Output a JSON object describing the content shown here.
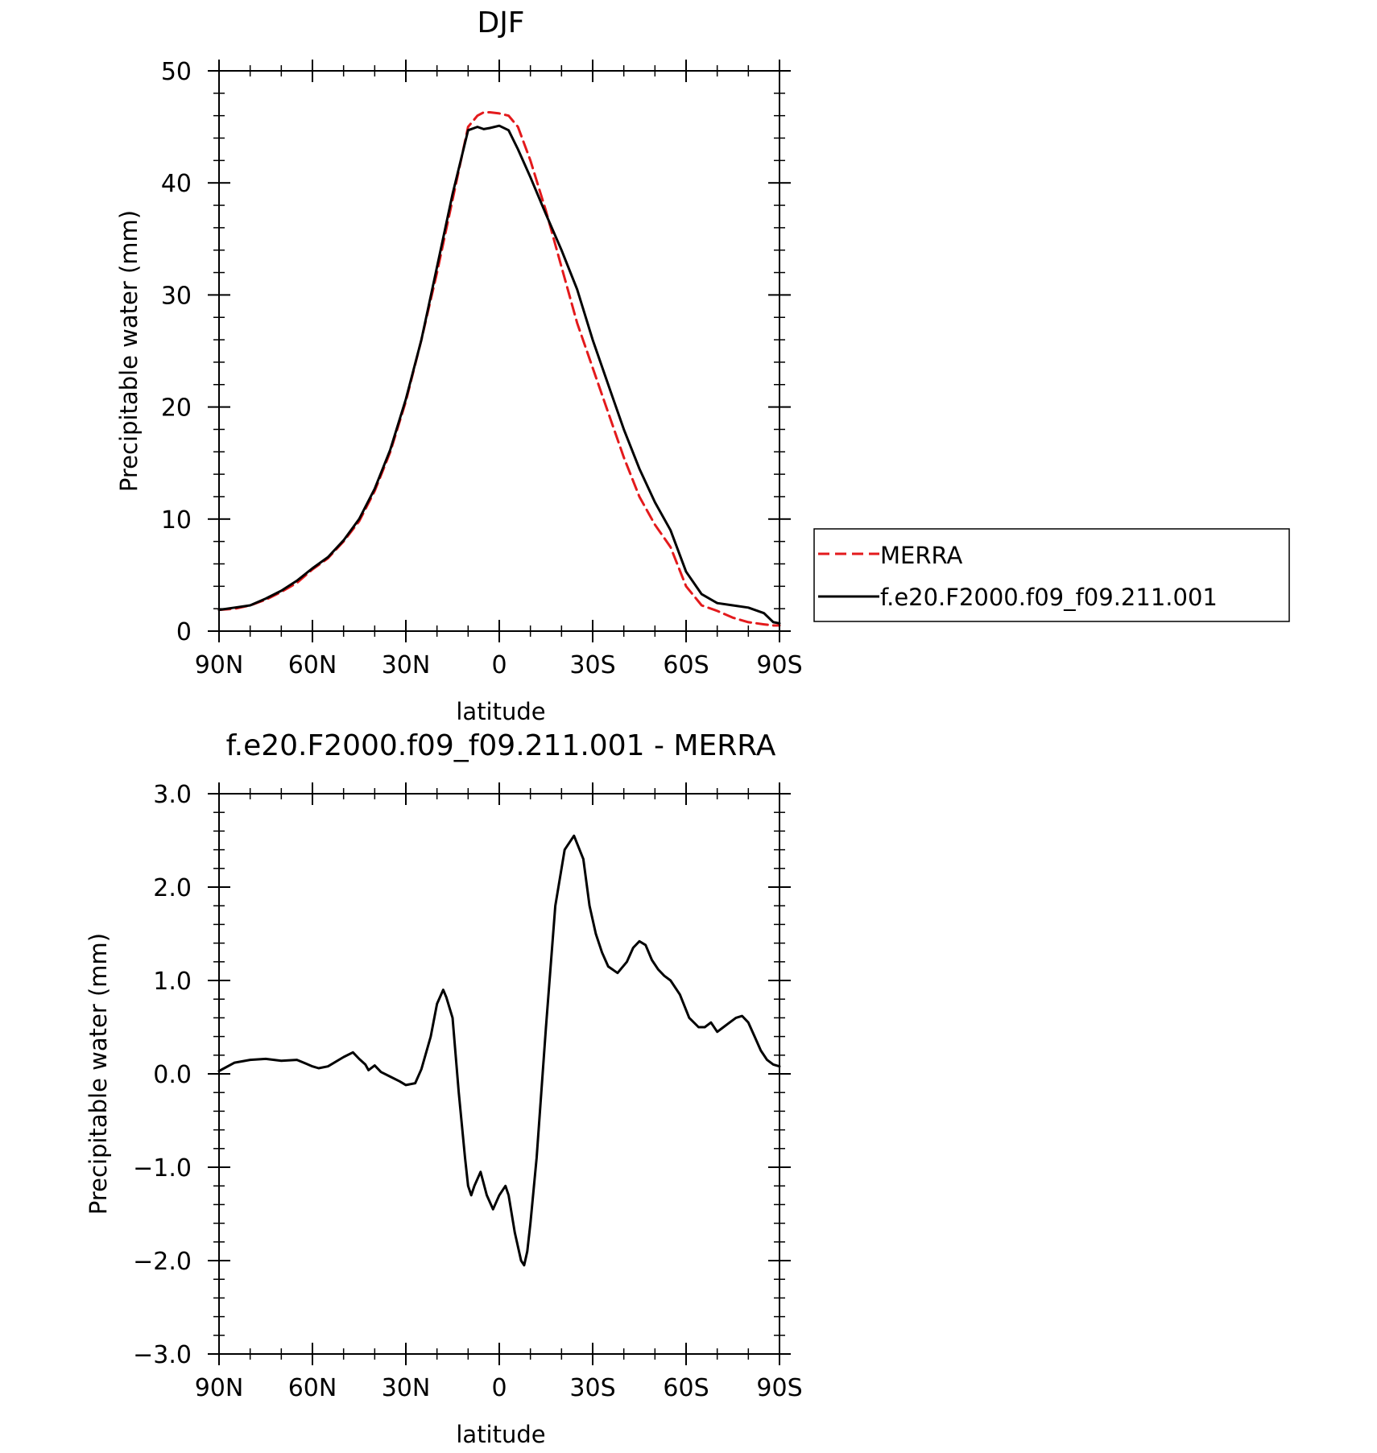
{
  "chart_data": [
    {
      "type": "line",
      "title": "DJF",
      "xlabel": "latitude",
      "ylabel": "Precipitable water (mm)",
      "xlim": [
        90,
        -90
      ],
      "ylim": [
        0,
        50
      ],
      "x_tick_values": [
        90,
        60,
        30,
        0,
        -30,
        -60,
        -90
      ],
      "x_tick_labels": [
        "90N",
        "60N",
        "30N",
        "0",
        "30S",
        "60S",
        "90S"
      ],
      "y_tick_values": [
        0,
        10,
        20,
        30,
        40,
        50
      ],
      "y_tick_labels": [
        "0",
        "10",
        "20",
        "30",
        "40",
        "50"
      ],
      "grid": false,
      "legend_position": "right",
      "series": [
        {
          "name": "MERRA",
          "color": "#e31a1c",
          "dash": "dashed",
          "x": [
            90,
            85,
            80,
            75,
            70,
            65,
            60,
            55,
            50,
            45,
            40,
            35,
            30,
            25,
            20,
            15,
            10,
            7,
            5,
            3,
            0,
            -3,
            -6,
            -10,
            -15,
            -20,
            -25,
            -30,
            -35,
            -40,
            -45,
            -50,
            -55,
            -60,
            -65,
            -70,
            -75,
            -80,
            -85,
            -88,
            -90
          ],
          "y": [
            1.9,
            2.0,
            2.3,
            2.8,
            3.5,
            4.3,
            5.5,
            6.5,
            8.0,
            9.8,
            12.5,
            16.0,
            20.5,
            26.0,
            32.0,
            38.5,
            45.0,
            46.0,
            46.3,
            46.3,
            46.2,
            46.0,
            45.0,
            42.0,
            37.5,
            32.5,
            27.5,
            23.5,
            19.5,
            15.5,
            12.0,
            9.5,
            7.5,
            4.0,
            2.3,
            1.8,
            1.2,
            0.8,
            0.6,
            0.5,
            0.5
          ]
        },
        {
          "name": "f.e20.F2000.f09_f09.211.001",
          "color": "#000000",
          "dash": "solid",
          "x": [
            90,
            85,
            80,
            75,
            70,
            65,
            60,
            55,
            50,
            45,
            40,
            35,
            30,
            25,
            20,
            15,
            10,
            7,
            5,
            3,
            0,
            -3,
            -6,
            -10,
            -15,
            -20,
            -25,
            -30,
            -35,
            -40,
            -45,
            -50,
            -55,
            -60,
            -65,
            -70,
            -75,
            -80,
            -85,
            -88,
            -90
          ],
          "y": [
            1.9,
            2.1,
            2.3,
            2.9,
            3.6,
            4.5,
            5.6,
            6.6,
            8.1,
            10.0,
            12.7,
            16.2,
            20.7,
            26.0,
            32.5,
            39.0,
            44.7,
            45.0,
            44.8,
            44.9,
            45.1,
            44.7,
            43.0,
            40.5,
            37.2,
            34.0,
            30.5,
            26.0,
            22.0,
            18.0,
            14.5,
            11.5,
            9.0,
            5.3,
            3.3,
            2.5,
            2.3,
            2.1,
            1.6,
            0.8,
            0.7
          ]
        }
      ]
    },
    {
      "type": "line",
      "title": "f.e20.F2000.f09_f09.211.001 - MERRA",
      "xlabel": "latitude",
      "ylabel": "Precipitable water (mm)",
      "xlim": [
        90,
        -90
      ],
      "ylim": [
        -3.0,
        3.0
      ],
      "x_tick_values": [
        90,
        60,
        30,
        0,
        -30,
        -60,
        -90
      ],
      "x_tick_labels": [
        "90N",
        "60N",
        "30N",
        "0",
        "30S",
        "60S",
        "90S"
      ],
      "y_tick_values": [
        3.0,
        2.0,
        1.0,
        0.0,
        -1.0,
        -2.0,
        -3.0
      ],
      "y_tick_labels": [
        "3.0",
        "2.0",
        "1.0",
        "0.0",
        "−1.0",
        "−2.0",
        "−3.0"
      ],
      "grid": false,
      "series": [
        {
          "color": "#000000",
          "dash": "solid",
          "x": [
            90,
            85,
            80,
            75,
            70,
            65,
            60,
            58,
            55,
            50,
            47,
            45,
            43,
            42,
            40,
            38,
            35,
            32,
            30,
            27,
            25,
            22,
            20,
            18,
            17,
            15,
            13,
            11,
            10,
            9,
            8,
            6,
            4,
            2,
            0,
            -2,
            -3,
            -5,
            -7,
            -8,
            -9,
            -10,
            -12,
            -15,
            -18,
            -21,
            -24,
            -27,
            -29,
            -31,
            -33,
            -35,
            -38,
            -41,
            -43,
            -45,
            -47,
            -49,
            -51,
            -53,
            -55,
            -58,
            -61,
            -64,
            -66,
            -68,
            -70,
            -72,
            -74,
            -76,
            -78,
            -80,
            -82,
            -84,
            -86,
            -88,
            -90
          ],
          "y": [
            0.03,
            0.12,
            0.15,
            0.16,
            0.14,
            0.15,
            0.08,
            0.06,
            0.08,
            0.18,
            0.23,
            0.16,
            0.1,
            0.04,
            0.09,
            0.02,
            -0.03,
            -0.08,
            -0.12,
            -0.1,
            0.05,
            0.4,
            0.75,
            0.9,
            0.82,
            0.6,
            -0.2,
            -0.9,
            -1.2,
            -1.3,
            -1.2,
            -1.05,
            -1.3,
            -1.45,
            -1.3,
            -1.2,
            -1.3,
            -1.7,
            -2.0,
            -2.05,
            -1.9,
            -1.6,
            -0.9,
            0.5,
            1.8,
            2.4,
            2.55,
            2.3,
            1.8,
            1.5,
            1.3,
            1.15,
            1.08,
            1.2,
            1.35,
            1.42,
            1.38,
            1.22,
            1.12,
            1.05,
            1.0,
            0.85,
            0.6,
            0.5,
            0.5,
            0.55,
            0.45,
            0.5,
            0.55,
            0.6,
            0.62,
            0.55,
            0.4,
            0.25,
            0.15,
            0.1,
            0.08
          ]
        }
      ]
    }
  ]
}
